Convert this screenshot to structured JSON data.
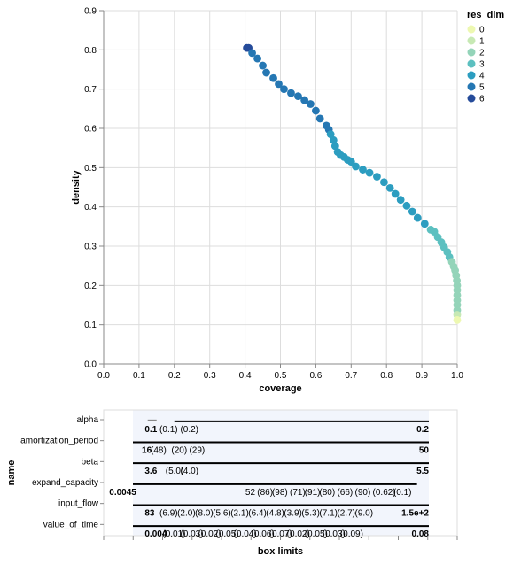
{
  "chart_data": [
    {
      "type": "scatter",
      "xlabel": "coverage",
      "ylabel": "density",
      "xlim": [
        0.0,
        1.0
      ],
      "ylim": [
        0.0,
        0.9
      ],
      "x_ticks": [
        "0.0",
        "0.1",
        "0.2",
        "0.3",
        "0.4",
        "0.5",
        "0.6",
        "0.7",
        "0.8",
        "0.9",
        "1.0"
      ],
      "y_ticks": [
        "0.0",
        "0.1",
        "0.2",
        "0.3",
        "0.4",
        "0.5",
        "0.6",
        "0.7",
        "0.8",
        "0.9"
      ],
      "grid": true,
      "legend": {
        "title": "res_dim",
        "placement": "top-right",
        "entries": [
          "0",
          "1",
          "2",
          "3",
          "4",
          "5",
          "6"
        ],
        "colors": [
          "#edf8b1",
          "#c7e9b4",
          "#94d4b9",
          "#5cc0c0",
          "#2c9dc0",
          "#2577b3",
          "#254b9a"
        ]
      },
      "points": [
        {
          "x": 0.405,
          "y": 0.805,
          "res_dim": 6
        },
        {
          "x": 0.41,
          "y": 0.805,
          "res_dim": 6
        },
        {
          "x": 0.42,
          "y": 0.792,
          "res_dim": 5
        },
        {
          "x": 0.435,
          "y": 0.778,
          "res_dim": 5
        },
        {
          "x": 0.45,
          "y": 0.76,
          "res_dim": 5
        },
        {
          "x": 0.46,
          "y": 0.742,
          "res_dim": 5
        },
        {
          "x": 0.48,
          "y": 0.728,
          "res_dim": 5
        },
        {
          "x": 0.495,
          "y": 0.713,
          "res_dim": 5
        },
        {
          "x": 0.51,
          "y": 0.7,
          "res_dim": 5
        },
        {
          "x": 0.53,
          "y": 0.69,
          "res_dim": 5
        },
        {
          "x": 0.55,
          "y": 0.682,
          "res_dim": 5
        },
        {
          "x": 0.568,
          "y": 0.672,
          "res_dim": 5
        },
        {
          "x": 0.585,
          "y": 0.662,
          "res_dim": 5
        },
        {
          "x": 0.6,
          "y": 0.645,
          "res_dim": 5
        },
        {
          "x": 0.612,
          "y": 0.625,
          "res_dim": 5
        },
        {
          "x": 0.63,
          "y": 0.607,
          "res_dim": 5
        },
        {
          "x": 0.637,
          "y": 0.597,
          "res_dim": 5
        },
        {
          "x": 0.642,
          "y": 0.585,
          "res_dim": 4
        },
        {
          "x": 0.65,
          "y": 0.57,
          "res_dim": 4
        },
        {
          "x": 0.655,
          "y": 0.555,
          "res_dim": 4
        },
        {
          "x": 0.662,
          "y": 0.54,
          "res_dim": 4
        },
        {
          "x": 0.67,
          "y": 0.532,
          "res_dim": 4
        },
        {
          "x": 0.68,
          "y": 0.527,
          "res_dim": 4
        },
        {
          "x": 0.69,
          "y": 0.52,
          "res_dim": 4
        },
        {
          "x": 0.7,
          "y": 0.515,
          "res_dim": 4
        },
        {
          "x": 0.713,
          "y": 0.503,
          "res_dim": 4
        },
        {
          "x": 0.733,
          "y": 0.495,
          "res_dim": 4
        },
        {
          "x": 0.752,
          "y": 0.487,
          "res_dim": 4
        },
        {
          "x": 0.773,
          "y": 0.477,
          "res_dim": 4
        },
        {
          "x": 0.793,
          "y": 0.463,
          "res_dim": 4
        },
        {
          "x": 0.81,
          "y": 0.448,
          "res_dim": 4
        },
        {
          "x": 0.825,
          "y": 0.433,
          "res_dim": 4
        },
        {
          "x": 0.84,
          "y": 0.418,
          "res_dim": 4
        },
        {
          "x": 0.857,
          "y": 0.403,
          "res_dim": 4
        },
        {
          "x": 0.873,
          "y": 0.388,
          "res_dim": 4
        },
        {
          "x": 0.888,
          "y": 0.372,
          "res_dim": 4
        },
        {
          "x": 0.908,
          "y": 0.357,
          "res_dim": 4
        },
        {
          "x": 0.925,
          "y": 0.342,
          "res_dim": 3
        },
        {
          "x": 0.935,
          "y": 0.337,
          "res_dim": 3
        },
        {
          "x": 0.945,
          "y": 0.323,
          "res_dim": 3
        },
        {
          "x": 0.955,
          "y": 0.31,
          "res_dim": 3
        },
        {
          "x": 0.963,
          "y": 0.297,
          "res_dim": 3
        },
        {
          "x": 0.972,
          "y": 0.285,
          "res_dim": 3
        },
        {
          "x": 0.978,
          "y": 0.272,
          "res_dim": 3
        },
        {
          "x": 0.985,
          "y": 0.26,
          "res_dim": 2
        },
        {
          "x": 0.99,
          "y": 0.248,
          "res_dim": 2
        },
        {
          "x": 0.994,
          "y": 0.238,
          "res_dim": 2
        },
        {
          "x": 0.997,
          "y": 0.225,
          "res_dim": 2
        },
        {
          "x": 0.999,
          "y": 0.212,
          "res_dim": 2
        },
        {
          "x": 1.0,
          "y": 0.2,
          "res_dim": 2
        },
        {
          "x": 1.0,
          "y": 0.188,
          "res_dim": 2
        },
        {
          "x": 1.0,
          "y": 0.175,
          "res_dim": 2
        },
        {
          "x": 1.0,
          "y": 0.162,
          "res_dim": 2
        },
        {
          "x": 1.0,
          "y": 0.15,
          "res_dim": 2
        },
        {
          "x": 1.0,
          "y": 0.137,
          "res_dim": 2
        },
        {
          "x": 1.0,
          "y": 0.125,
          "res_dim": 1
        },
        {
          "x": 1.0,
          "y": 0.112,
          "res_dim": 0
        }
      ]
    },
    {
      "type": "box-limits",
      "xlabel": "box limits",
      "ylabel": "name",
      "grid": false,
      "rows": [
        {
          "name": "alpha",
          "bar": [
            0.05,
            0.08,
            0.14,
            1.0
          ],
          "labels": [
            {
              "text": "0.1",
              "pos": 0.04,
              "anchor": "start"
            },
            {
              "text": "(0.1)",
              "pos": 0.09,
              "anchor": "start"
            },
            {
              "text": "(0.2)",
              "pos": 0.16,
              "anchor": "start"
            },
            {
              "text": "0.2",
              "pos": 1.0,
              "anchor": "end"
            }
          ]
        },
        {
          "name": "amortization_period",
          "bar": [
            0.0,
            0.0,
            0.0,
            1.0
          ],
          "labels": [
            {
              "text": "16",
              "pos": 0.03,
              "anchor": "start"
            },
            {
              "text": "(48)",
              "pos": 0.06,
              "anchor": "start"
            },
            {
              "text": "(20)",
              "pos": 0.13,
              "anchor": "start"
            },
            {
              "text": "(29)",
              "pos": 0.19,
              "anchor": "start"
            },
            {
              "text": "50",
              "pos": 1.0,
              "anchor": "end"
            }
          ]
        },
        {
          "name": "beta",
          "bar": [
            0.0,
            0.0,
            0.0,
            1.0
          ],
          "labels": [
            {
              "text": "3.6",
              "pos": 0.04,
              "anchor": "start"
            },
            {
              "text": "(5.0)",
              "pos": 0.11,
              "anchor": "start"
            },
            {
              "text": "(4.0)",
              "pos": 0.16,
              "anchor": "start"
            },
            {
              "text": "5.5",
              "pos": 1.0,
              "anchor": "end"
            }
          ]
        },
        {
          "name": "expand_capacity",
          "bar": [
            0.0,
            0.0,
            0.0,
            0.96
          ],
          "labels": [
            {
              "text": "0.0045",
              "pos": -0.08,
              "anchor": "start"
            },
            {
              "text": "52",
              "pos": 0.38,
              "anchor": "start"
            },
            {
              "text": "(86)",
              "pos": 0.42,
              "anchor": "start"
            },
            {
              "text": "(98)",
              "pos": 0.47,
              "anchor": "start"
            },
            {
              "text": "(71)",
              "pos": 0.53,
              "anchor": "start"
            },
            {
              "text": "(91)",
              "pos": 0.58,
              "anchor": "start"
            },
            {
              "text": "(80)",
              "pos": 0.63,
              "anchor": "start"
            },
            {
              "text": "(66)",
              "pos": 0.69,
              "anchor": "start"
            },
            {
              "text": "(90)",
              "pos": 0.75,
              "anchor": "start"
            },
            {
              "text": "(0.62)",
              "pos": 0.81,
              "anchor": "start"
            },
            {
              "text": "(0.1)",
              "pos": 0.88,
              "anchor": "start"
            }
          ]
        },
        {
          "name": "input_flow",
          "bar": [
            0.0,
            0.0,
            0.0,
            1.0
          ],
          "labels": [
            {
              "text": "83",
              "pos": 0.04,
              "anchor": "start"
            },
            {
              "text": "(6.9)",
              "pos": 0.09,
              "anchor": "start"
            },
            {
              "text": "(2.0)",
              "pos": 0.15,
              "anchor": "start"
            },
            {
              "text": "(8.0)",
              "pos": 0.21,
              "anchor": "start"
            },
            {
              "text": "(5.6)",
              "pos": 0.27,
              "anchor": "start"
            },
            {
              "text": "(2.1)",
              "pos": 0.33,
              "anchor": "start"
            },
            {
              "text": "(6.4)",
              "pos": 0.39,
              "anchor": "start"
            },
            {
              "text": "(4.8)",
              "pos": 0.45,
              "anchor": "start"
            },
            {
              "text": "(3.9)",
              "pos": 0.51,
              "anchor": "start"
            },
            {
              "text": "(5.3)",
              "pos": 0.57,
              "anchor": "start"
            },
            {
              "text": "(7.1)",
              "pos": 0.63,
              "anchor": "start"
            },
            {
              "text": "(2.7)",
              "pos": 0.69,
              "anchor": "start"
            },
            {
              "text": "(9.0)",
              "pos": 0.75,
              "anchor": "start"
            },
            {
              "text": "1.5e+2",
              "pos": 1.0,
              "anchor": "end"
            }
          ]
        },
        {
          "name": "value_of_time",
          "bar": [
            0.0,
            0.0,
            0.0,
            1.0
          ],
          "labels": [
            {
              "text": "0.004",
              "pos": 0.04,
              "anchor": "start"
            },
            {
              "text": "(0.01)",
              "pos": 0.1,
              "anchor": "start"
            },
            {
              "text": "(0.03)",
              "pos": 0.16,
              "anchor": "start"
            },
            {
              "text": "(0.02)",
              "pos": 0.22,
              "anchor": "start"
            },
            {
              "text": "(0.05)",
              "pos": 0.28,
              "anchor": "start"
            },
            {
              "text": "(0.04)",
              "pos": 0.34,
              "anchor": "start"
            },
            {
              "text": "(0.06)",
              "pos": 0.4,
              "anchor": "start"
            },
            {
              "text": "(0.07)",
              "pos": 0.46,
              "anchor": "start"
            },
            {
              "text": "(0.02)",
              "pos": 0.52,
              "anchor": "start"
            },
            {
              "text": "(0.05)",
              "pos": 0.58,
              "anchor": "start"
            },
            {
              "text": "(0.03)",
              "pos": 0.64,
              "anchor": "start"
            },
            {
              "text": "(0.09)",
              "pos": 0.7,
              "anchor": "start"
            },
            {
              "text": "0.08",
              "pos": 1.0,
              "anchor": "end"
            }
          ]
        }
      ]
    }
  ]
}
